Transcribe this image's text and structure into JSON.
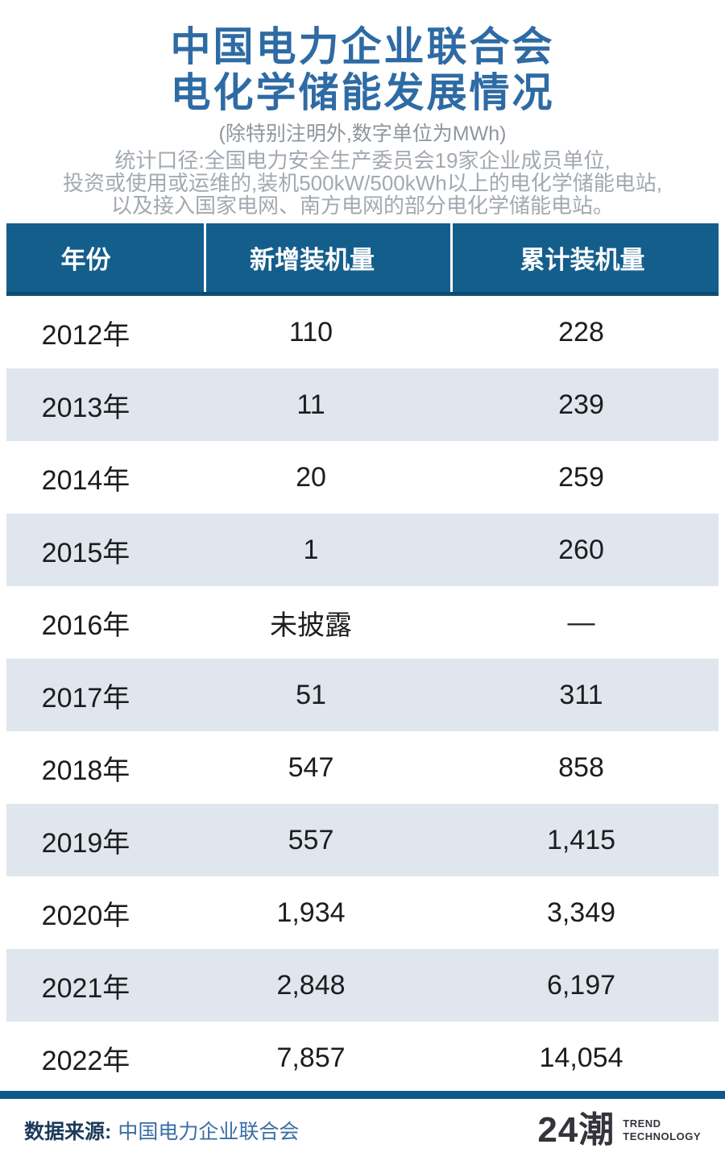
{
  "header": {
    "title_line1": "中国电力企业联合会",
    "title_line2": "电化学储能发展情况",
    "unit_note": "(除特别注明外,数字单位为MWh)",
    "scope_line1": "统计口径:全国电力安全生产委员会19家企业成员单位,",
    "scope_line2": "投资或使用或运维的,装机500kW/500kWh以上的电化学储能电站,",
    "scope_line3": "以及接入国家电网、南方电网的部分电化学储能电站。"
  },
  "table": {
    "columns": [
      "年份",
      "新增装机量",
      "累计装机量"
    ],
    "rows": [
      [
        "2012年",
        "110",
        "228"
      ],
      [
        "2013年",
        "11",
        "239"
      ],
      [
        "2014年",
        "20",
        "259"
      ],
      [
        "2015年",
        "1",
        "260"
      ],
      [
        "2016年",
        "未披露",
        "—"
      ],
      [
        "2017年",
        "51",
        "311"
      ],
      [
        "2018年",
        "547",
        "858"
      ],
      [
        "2019年",
        "557",
        "1,415"
      ],
      [
        "2020年",
        "1,934",
        "3,349"
      ],
      [
        "2021年",
        "2,848",
        "6,197"
      ],
      [
        "2022年",
        "7,857",
        "14,054"
      ]
    ]
  },
  "chart_data": {
    "type": "table",
    "title": "中国电力企业联合会电化学储能发展情况",
    "unit": "MWh",
    "categories": [
      "2012年",
      "2013年",
      "2014年",
      "2015年",
      "2016年",
      "2017年",
      "2018年",
      "2019年",
      "2020年",
      "2021年",
      "2022年"
    ],
    "series": [
      {
        "name": "新增装机量",
        "values": [
          "110",
          "11",
          "20",
          "1",
          "未披露",
          "51",
          "547",
          "557",
          "1,934",
          "2,848",
          "7,857"
        ]
      },
      {
        "name": "累计装机量",
        "values": [
          "228",
          "239",
          "259",
          "260",
          "—",
          "311",
          "858",
          "1,415",
          "3,349",
          "6,197",
          "14,054"
        ]
      }
    ]
  },
  "footer": {
    "source_label": "数据来源:",
    "source_value": "中国电力企业联合会",
    "logo_text": "24潮",
    "logo_sub_line1": "TREND",
    "logo_sub_line2": "TECHNOLOGY"
  },
  "colors": {
    "title_blue": "#2e6ba4",
    "table_header_blue": "#145e8c",
    "table_header_border": "#0d4d73",
    "row_alt_blue_gray": "#dfe6ee",
    "bottom_bar_blue": "#0e598a",
    "note_gray": "#a2a9b0",
    "source_label_navy": "#1d3b5a",
    "source_value_blue": "#3a6ea5",
    "logo_dark": "#34343c",
    "data_text": "#1d1d1f"
  }
}
